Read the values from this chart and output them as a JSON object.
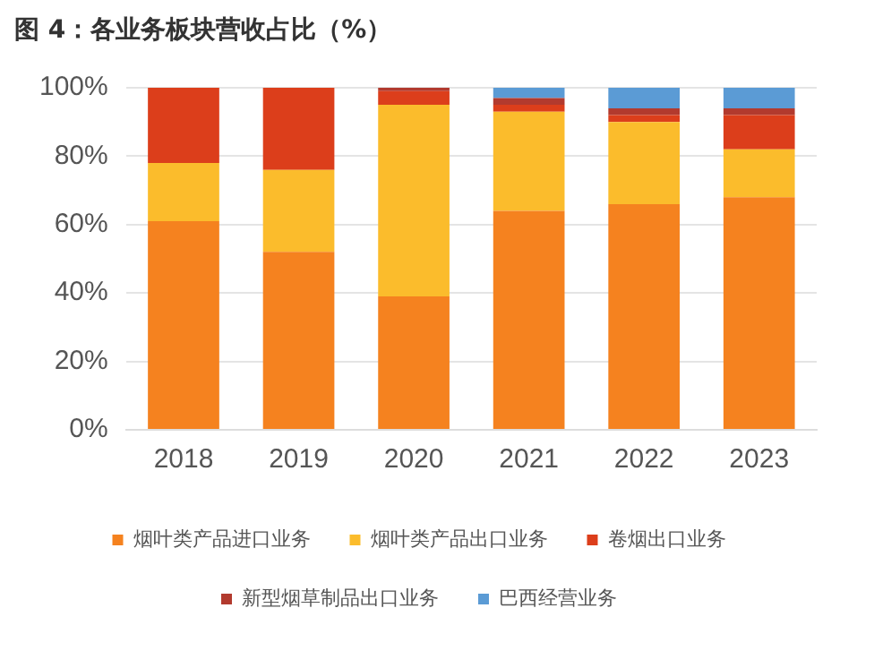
{
  "chart_data": {
    "type": "bar",
    "title": "图 4：各业务板块营收占比（%）",
    "categories": [
      "2018",
      "2019",
      "2020",
      "2021",
      "2022",
      "2023"
    ],
    "stacked": true,
    "series": [
      {
        "name": "烟叶类产品进口业务",
        "color": "#f5821f",
        "values": [
          61,
          52,
          39,
          64,
          66,
          68
        ]
      },
      {
        "name": "烟叶类产品出口业务",
        "color": "#fbbc2c",
        "values": [
          17,
          24,
          56,
          29,
          24,
          14
        ]
      },
      {
        "name": "卷烟出口业务",
        "color": "#dc3e1b",
        "values": [
          22,
          24,
          4,
          2,
          2,
          10
        ]
      },
      {
        "name": "新型烟草制品出口业务",
        "color": "#b23a2e",
        "values": [
          0,
          0,
          1,
          2,
          2,
          2
        ]
      },
      {
        "name": "巴西经营业务",
        "color": "#5b9bd5",
        "values": [
          0,
          0,
          0,
          3,
          6,
          6
        ]
      }
    ],
    "ylim": [
      0,
      100
    ],
    "yticks": [
      {
        "value": 0,
        "label": "0%"
      },
      {
        "value": 20,
        "label": "20%"
      },
      {
        "value": 40,
        "label": "40%"
      },
      {
        "value": 60,
        "label": "60%"
      },
      {
        "value": 80,
        "label": "80%"
      },
      {
        "value": 100,
        "label": "100%"
      }
    ],
    "grid": "y",
    "legend": "bottom"
  }
}
